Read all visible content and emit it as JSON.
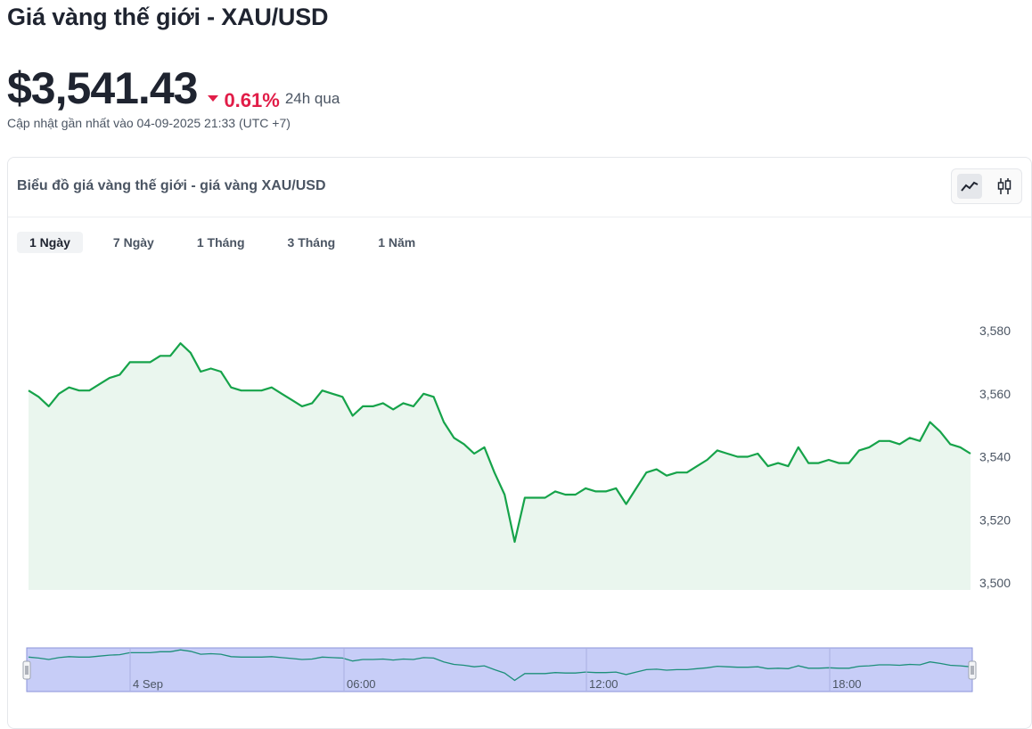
{
  "header": {
    "title": "Giá vàng thế giới - XAU/USD",
    "price": "$3,541.43",
    "change": "0.61%",
    "period": "24h qua",
    "updated": "Cập nhật gần nhất vào 04-09-2025 21:33 (UTC +7)"
  },
  "card": {
    "title": "Biểu đồ giá vàng thế giới - giá vàng XAU/USD",
    "chart_types": [
      "line-chart-icon",
      "candlestick-icon"
    ]
  },
  "tabs": [
    {
      "label": "1 Ngày",
      "active": true
    },
    {
      "label": "7 Ngày",
      "active": false
    },
    {
      "label": "1 Tháng",
      "active": false
    },
    {
      "label": "3 Tháng",
      "active": false
    },
    {
      "label": "1 Năm",
      "active": false
    }
  ],
  "colors": {
    "line": "#16a34a",
    "area": "#eaf6ee",
    "negative": "#e11d48",
    "navigator_bg": "#c7cdf7",
    "navigator_border": "#8b93d8"
  },
  "chart_data": {
    "type": "area",
    "ylim": [
      3500,
      3580
    ],
    "yticks": [
      "3,500",
      "3,520",
      "3,540",
      "3,560",
      "3,580"
    ],
    "navigator_labels": [
      "4 Sep",
      "06:00",
      "12:00",
      "18:00"
    ],
    "values": [
      3561,
      3559,
      3556,
      3560,
      3562,
      3561,
      3561,
      3563,
      3565,
      3566,
      3570,
      3570,
      3570,
      3572,
      3572,
      3576,
      3573,
      3567,
      3568,
      3567,
      3562,
      3561,
      3561,
      3561,
      3562,
      3560,
      3558,
      3556,
      3557,
      3561,
      3560,
      3559,
      3553,
      3556,
      3556,
      3557,
      3555,
      3557,
      3556,
      3560,
      3559,
      3551,
      3546,
      3544,
      3541,
      3543,
      3535,
      3528,
      3513,
      3527,
      3527,
      3527,
      3529,
      3528,
      3528,
      3530,
      3529,
      3529,
      3530,
      3525,
      3530,
      3535,
      3536,
      3534,
      3535,
      3535,
      3537,
      3539,
      3542,
      3541,
      3540,
      3540,
      3541,
      3537,
      3538,
      3537,
      3543,
      3538,
      3538,
      3539,
      3538,
      3538,
      3542,
      3543,
      3545,
      3545,
      3544,
      3546,
      3545,
      3551,
      3548,
      3544,
      3543,
      3541
    ]
  }
}
